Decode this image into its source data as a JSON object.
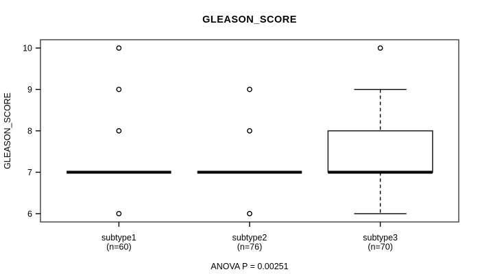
{
  "chart_data": {
    "type": "boxplot",
    "title": "GLEASON_SCORE",
    "ylabel": "GLEASON_SCORE",
    "xlabel": "",
    "caption": "ANOVA P = 0.00251",
    "ylim": [
      5.8,
      10.2
    ],
    "yticks": [
      6,
      7,
      8,
      9,
      10
    ],
    "grid": false,
    "legend": "none",
    "groups": [
      {
        "label": "subtype1",
        "sublabel": "(n=60)",
        "n": 60,
        "whisker_low": 7,
        "q1": 7,
        "median": 7,
        "q3": 7,
        "whisker_high": 7,
        "outliers": [
          6,
          8,
          9,
          10
        ]
      },
      {
        "label": "subtype2",
        "sublabel": "(n=76)",
        "n": 76,
        "whisker_low": 7,
        "q1": 7,
        "median": 7,
        "q3": 7,
        "whisker_high": 7,
        "outliers": [
          6,
          8,
          9
        ]
      },
      {
        "label": "subtype3",
        "sublabel": "(n=70)",
        "n": 70,
        "whisker_low": 6,
        "q1": 7,
        "median": 7,
        "q3": 8,
        "whisker_high": 9,
        "outliers": [
          10
        ]
      }
    ],
    "colors": {
      "stroke": "#000000",
      "box_border": "#1a1a1a",
      "frame": "#4a4a4a",
      "box_fill": "#ffffff",
      "background": "#ffffff"
    }
  }
}
